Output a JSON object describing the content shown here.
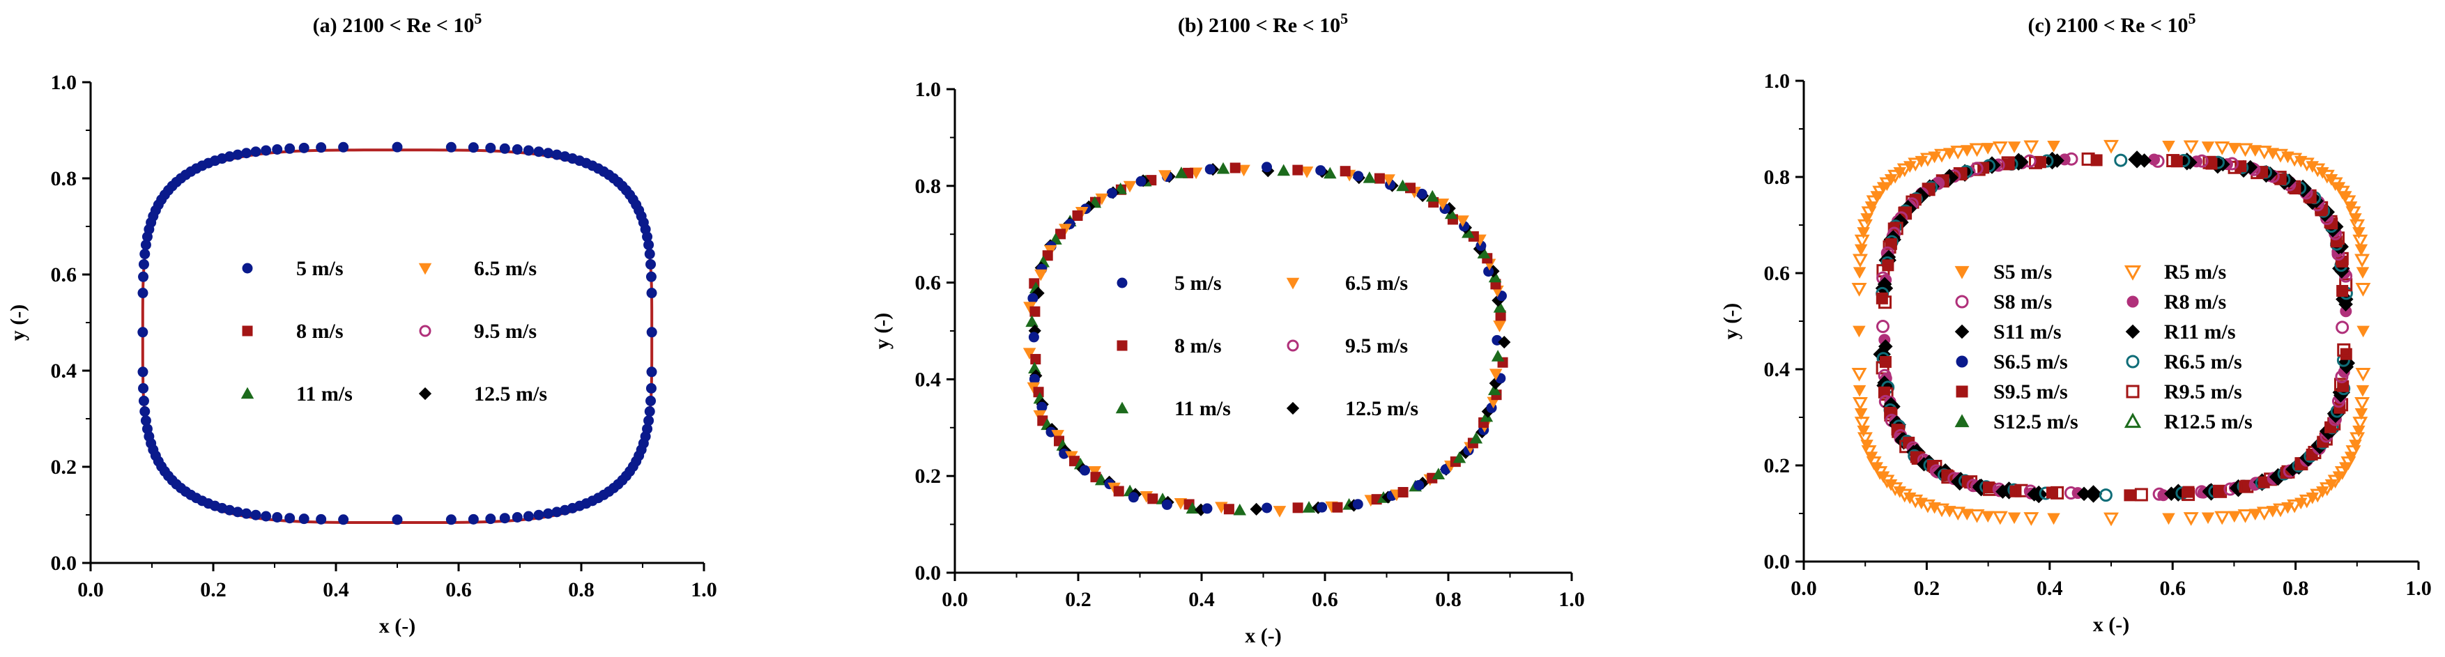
{
  "figure": {
    "panels": 3
  },
  "colors": {
    "navy": "#0a1a8c",
    "darkred": "#a31515",
    "green": "#1c6b1c",
    "orange": "#ff8c1a",
    "magenta": "#b0307a",
    "black": "#000000",
    "teal": "#0f6d78",
    "curve": "#b22222",
    "axis": "#000000"
  },
  "chart_data": [
    {
      "type": "scatter",
      "title": {
        "prefix": "(a) 2100 < Re < 10",
        "sup": "5"
      },
      "xlabel": "x (-)",
      "ylabel": "y (-)",
      "xlim": [
        0,
        1
      ],
      "ylim": [
        0,
        1
      ],
      "xticks": [
        "0.0",
        "0.2",
        "0.4",
        "0.6",
        "0.8",
        "1.0"
      ],
      "yticks": [
        "0.0",
        "0.2",
        "0.4",
        "0.6",
        "0.8",
        "1.0"
      ],
      "grid": false,
      "legend_position": "center",
      "legend_columns": 2,
      "shape": {
        "cx": 0.5,
        "cy": 0.48,
        "a_right": 0.415,
        "a_left": 0.415,
        "b_top": 0.385,
        "b_bottom": 0.39,
        "n": 4.0,
        "points": 140,
        "jitter": 0.0
      },
      "reference_curve": true,
      "series": [
        {
          "name": "5 m/s",
          "marker": "circle",
          "color": "navy",
          "open": false,
          "shown": true
        },
        {
          "name": "6.5 m/s",
          "marker": "triangle-down",
          "color": "orange",
          "open": false,
          "shown": false
        },
        {
          "name": "8 m/s",
          "marker": "square",
          "color": "darkred",
          "open": false,
          "shown": false
        },
        {
          "name": "9.5 m/s",
          "marker": "circle",
          "color": "magenta",
          "open": true,
          "shown": false
        },
        {
          "name": "11 m/s",
          "marker": "triangle-up",
          "color": "green",
          "open": false,
          "shown": false
        },
        {
          "name": "12.5 m/s",
          "marker": "diamond",
          "color": "black",
          "open": false,
          "shown": false
        }
      ]
    },
    {
      "type": "scatter",
      "title": {
        "prefix": "(b) 2100 < Re < 10",
        "sup": "5"
      },
      "xlabel": "x (-)",
      "ylabel": "y (-)",
      "xlim": [
        0,
        1
      ],
      "ylim": [
        0,
        1
      ],
      "xticks": [
        "0.0",
        "0.2",
        "0.4",
        "0.6",
        "0.8",
        "1.0"
      ],
      "yticks": [
        "0.0",
        "0.2",
        "0.4",
        "0.6",
        "0.8",
        "1.0"
      ],
      "grid": false,
      "legend_position": "center",
      "legend_columns": 2,
      "shape": {
        "cx": 0.5,
        "cy": 0.485,
        "a_right": 0.385,
        "a_left": 0.375,
        "b_top": 0.35,
        "b_bottom": 0.355,
        "n": 2.6,
        "points": 40,
        "jitter": 0.012
      },
      "reference_curve": false,
      "series": [
        {
          "name": "5 m/s",
          "marker": "circle",
          "color": "navy",
          "open": false,
          "shown": true
        },
        {
          "name": "6.5 m/s",
          "marker": "triangle-down",
          "color": "orange",
          "open": false,
          "shown": true
        },
        {
          "name": "8 m/s",
          "marker": "square",
          "color": "darkred",
          "open": false,
          "shown": true
        },
        {
          "name": "9.5 m/s",
          "marker": "circle",
          "color": "magenta",
          "open": true,
          "shown": false
        },
        {
          "name": "11 m/s",
          "marker": "triangle-up",
          "color": "green",
          "open": false,
          "shown": true
        },
        {
          "name": "12.5 m/s",
          "marker": "diamond",
          "color": "black",
          "open": false,
          "shown": true
        }
      ]
    },
    {
      "type": "scatter",
      "title": {
        "prefix": "(c) 2100 < Re < 10",
        "sup": "5"
      },
      "xlabel": "x (-)",
      "ylabel": "y (-)",
      "xlim": [
        0,
        1
      ],
      "ylim": [
        0,
        1
      ],
      "xticks": [
        "0.0",
        "0.2",
        "0.4",
        "0.6",
        "0.8",
        "1.0"
      ],
      "yticks": [
        "0.0",
        "0.2",
        "0.4",
        "0.6",
        "0.8",
        "1.0"
      ],
      "grid": false,
      "legend_position": "center",
      "legend_columns": 2,
      "shape": {
        "cx": 0.5,
        "cy": 0.48,
        "a_right": 0.41,
        "a_left": 0.41,
        "b_top": 0.385,
        "b_bottom": 0.39,
        "n": 4.2,
        "points": 70,
        "jitter": 0.0
      },
      "inner_shape": {
        "cx": 0.505,
        "cy": 0.49,
        "a_right": 0.375,
        "a_left": 0.375,
        "b_top": 0.345,
        "b_bottom": 0.35,
        "n": 3.4,
        "points": 50,
        "jitter": 0.008
      },
      "reference_curve": false,
      "series": [
        {
          "name": "S5 m/s",
          "marker": "triangle-down",
          "color": "orange",
          "open": false,
          "ring": "outer"
        },
        {
          "name": "R5 m/s",
          "marker": "triangle-down",
          "color": "orange",
          "open": true,
          "ring": "outer"
        },
        {
          "name": "S8 m/s",
          "marker": "circle",
          "color": "magenta",
          "open": true,
          "ring": "inner"
        },
        {
          "name": "R8 m/s",
          "marker": "circle",
          "color": "magenta",
          "open": false,
          "ring": "inner"
        },
        {
          "name": "S11 m/s",
          "marker": "diamond",
          "color": "black",
          "open": false,
          "ring": "inner"
        },
        {
          "name": "R11 m/s",
          "marker": "diamond",
          "color": "black",
          "open": false,
          "ring": "inner",
          "big": true
        },
        {
          "name": "S6.5 m/s",
          "marker": "circle",
          "color": "navy",
          "open": false,
          "ring": "none"
        },
        {
          "name": "R6.5 m/s",
          "marker": "circle",
          "color": "teal",
          "open": true,
          "ring": "inner"
        },
        {
          "name": "S9.5 m/s",
          "marker": "square",
          "color": "darkred",
          "open": false,
          "ring": "inner"
        },
        {
          "name": "R9.5 m/s",
          "marker": "square",
          "color": "darkred",
          "open": true,
          "ring": "inner"
        },
        {
          "name": "S12.5 m/s",
          "marker": "triangle-up",
          "color": "green",
          "open": false,
          "ring": "none"
        },
        {
          "name": "R12.5 m/s",
          "marker": "triangle-up",
          "color": "green",
          "open": true,
          "ring": "none"
        }
      ]
    }
  ]
}
